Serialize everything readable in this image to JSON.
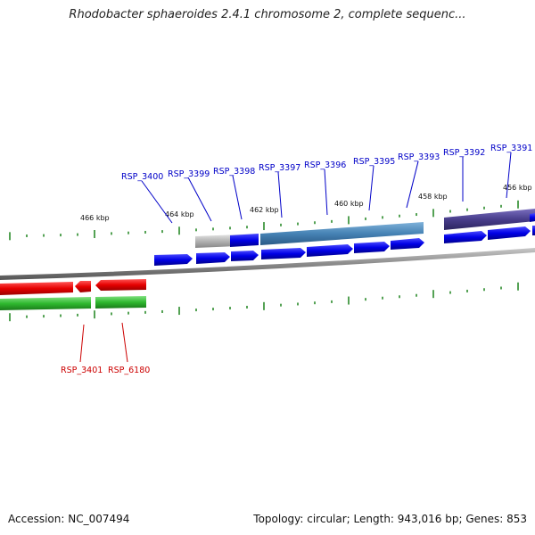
{
  "title": "Rhodobacter sphaeroides 2.4.1 chromosome 2, complete sequenc...",
  "footer": {
    "accession": "Accession: NC_007494",
    "summary": "Topology: circular; Length: 943,016 bp; Genes: 853"
  },
  "colors": {
    "forward_cds": "#0000e0",
    "reverse_cds": "#e00000",
    "forward_operon_track": "#4682b4",
    "forward_operon_track_2": "#483d8b",
    "reverse_operon_track": "#22b822",
    "unassigned_track": "#b0b0b0",
    "backbone": "#888888",
    "tick": "#2a8a2a",
    "forward_label": "#0000c8",
    "reverse_label": "#cc0000"
  },
  "scale_labels": [
    "466 kbp",
    "464 kbp",
    "462 kbp",
    "460 kbp",
    "458 kbp",
    "456 kbp"
  ],
  "forward_genes": [
    "RSP_3400",
    "RSP_3399",
    "RSP_3398",
    "RSP_3397",
    "RSP_3396",
    "RSP_3395",
    "RSP_3393",
    "RSP_3392",
    "RSP_3391"
  ],
  "reverse_genes": [
    "RSP_3401",
    "RSP_6180"
  ]
}
